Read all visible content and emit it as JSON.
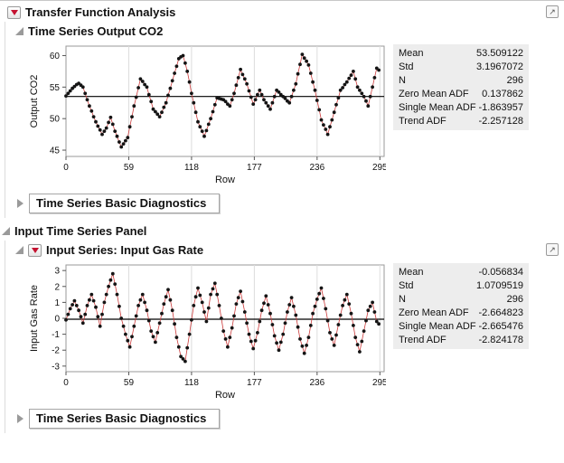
{
  "header": {
    "title": "Transfer Function Analysis"
  },
  "sections": {
    "output": {
      "title": "Time Series Output CO2",
      "diagnostics_label": "Time Series Basic Diagnostics"
    },
    "input_panel": {
      "title": "Input Time Series Panel"
    },
    "input_series": {
      "title": "Input Series: Input Gas Rate",
      "diagnostics_label": "Time Series Basic Diagnostics"
    }
  },
  "icons": {
    "popout_glyph": "↗"
  },
  "colors": {
    "red_triangle": "#c41230",
    "series_line": "#cc3b3b",
    "point": "#141414",
    "stats_bg": "#ededed",
    "grid": "#dcdcdc"
  },
  "stats_panels": [
    {
      "rows": [
        [
          "Mean",
          "53.509122"
        ],
        [
          "Std",
          "3.1967072"
        ],
        [
          "N",
          "296"
        ],
        [
          "Zero Mean ADF",
          "0.137862"
        ],
        [
          "Single Mean ADF",
          "-1.863957"
        ],
        [
          "Trend ADF",
          "-2.257128"
        ]
      ]
    },
    {
      "rows": [
        [
          "Mean",
          "-0.056834"
        ],
        [
          "Std",
          "1.0709519"
        ],
        [
          "N",
          "296"
        ],
        [
          "Zero Mean ADF",
          "-2.664823"
        ],
        [
          "Single Mean ADF",
          "-2.665476"
        ],
        [
          "Trend ADF",
          "-2.824178"
        ]
      ]
    }
  ],
  "chart_data": [
    {
      "type": "line",
      "title": "Time Series Output CO2",
      "xlabel": "Row",
      "ylabel": "Output CO2",
      "x_start": 0,
      "x_step": 2,
      "xlim": [
        0,
        299
      ],
      "ylim": [
        44,
        61.5
      ],
      "xticks": [
        0,
        59,
        118,
        177,
        236,
        295
      ],
      "yticks": [
        45,
        50,
        55,
        60
      ],
      "ref_line": 53.509122,
      "grid": "vertical-only",
      "marker": "filled-circle",
      "line_color": "#cc3b3b",
      "point_color": "#141414",
      "values": [
        53.6,
        54.0,
        54.4,
        54.8,
        55.1,
        55.4,
        55.6,
        55.3,
        55.0,
        54.0,
        53.0,
        52.0,
        51.2,
        50.3,
        49.5,
        48.8,
        48.2,
        47.5,
        48.0,
        48.5,
        49.4,
        50.2,
        49.1,
        48.0,
        47.2,
        46.3,
        45.5,
        46.0,
        46.5,
        47.0,
        48.7,
        50.3,
        52.0,
        53.4,
        54.9,
        56.3,
        55.9,
        55.4,
        55.0,
        53.8,
        52.7,
        51.5,
        51.1,
        50.7,
        50.3,
        51.0,
        51.8,
        52.5,
        53.7,
        54.8,
        56.0,
        57.2,
        58.3,
        59.5,
        59.8,
        60.0,
        58.8,
        57.5,
        55.8,
        54.0,
        52.5,
        51.0,
        49.5,
        48.7,
        48.0,
        47.2,
        48.1,
        49.1,
        50.0,
        51.1,
        52.2,
        53.3,
        53.2,
        53.1,
        53.0,
        52.7,
        52.3,
        52.0,
        53.0,
        54.0,
        55.3,
        56.5,
        57.8,
        57.0,
        56.3,
        55.5,
        54.4,
        53.4,
        52.3,
        53.0,
        53.8,
        54.5,
        53.8,
        53.0,
        52.5,
        52.0,
        51.5,
        52.5,
        53.5,
        54.5,
        54.2,
        53.8,
        53.5,
        53.2,
        52.8,
        52.5,
        53.5,
        54.5,
        55.5,
        57.1,
        58.6,
        60.2,
        59.6,
        59.1,
        58.5,
        57.2,
        55.8,
        54.5,
        52.9,
        51.4,
        49.8,
        49.0,
        48.3,
        47.5,
        48.7,
        49.8,
        51.0,
        52.2,
        53.3,
        54.5,
        54.9,
        55.4,
        55.8,
        56.4,
        56.9,
        57.5,
        56.3,
        55.0,
        54.5,
        54.0,
        53.5,
        52.8,
        52.0,
        53.5,
        55.0,
        56.5,
        58.0,
        57.7
      ]
    },
    {
      "type": "line",
      "title": "Input Series: Input Gas Rate",
      "xlabel": "Row",
      "ylabel": "Input Gas Rate",
      "x_start": 0,
      "x_step": 2,
      "xlim": [
        0,
        299
      ],
      "ylim": [
        -3.35,
        3.35
      ],
      "xticks": [
        0,
        59,
        118,
        177,
        236,
        295
      ],
      "yticks": [
        -3,
        -2,
        -1,
        0,
        1,
        2,
        3
      ],
      "ref_line": -0.056834,
      "grid": "vertical-only",
      "marker": "filled-circle",
      "line_color": "#cc3b3b",
      "point_color": "#141414",
      "values": [
        -0.1,
        0.25,
        0.6,
        0.85,
        1.1,
        0.8,
        0.5,
        0.1,
        -0.3,
        0.25,
        0.8,
        1.15,
        1.5,
        1.1,
        0.7,
        0.1,
        -0.5,
        0.25,
        1.0,
        1.5,
        2.0,
        2.4,
        2.8,
        2.15,
        1.5,
        0.75,
        0.0,
        -0.5,
        -1.0,
        -1.4,
        -1.8,
        -1.15,
        -0.5,
        0.15,
        0.8,
        1.15,
        1.5,
        1.0,
        0.5,
        -0.15,
        -0.8,
        -1.15,
        -1.5,
        -0.9,
        -0.3,
        0.3,
        0.9,
        1.35,
        1.8,
        1.15,
        0.5,
        -0.35,
        -1.2,
        -1.8,
        -2.4,
        -2.55,
        -2.7,
        -1.85,
        -1.0,
        -0.1,
        0.8,
        1.35,
        1.9,
        1.45,
        1.0,
        0.4,
        -0.2,
        0.65,
        1.5,
        1.85,
        2.2,
        1.5,
        0.8,
        0.0,
        -0.8,
        -1.3,
        -1.8,
        -1.2,
        -0.6,
        0.15,
        0.9,
        1.3,
        1.7,
        1.05,
        0.4,
        -0.3,
        -1.0,
        -1.45,
        -1.9,
        -1.4,
        -0.9,
        -0.2,
        0.5,
        0.95,
        1.4,
        0.85,
        0.3,
        -0.4,
        -1.1,
        -1.55,
        -2.0,
        -1.5,
        -1.0,
        -0.3,
        0.4,
        0.85,
        1.3,
        0.75,
        0.2,
        -0.55,
        -1.3,
        -1.75,
        -2.2,
        -1.7,
        -1.2,
        -0.45,
        0.3,
        0.75,
        1.2,
        1.55,
        1.9,
        1.25,
        0.6,
        -0.15,
        -0.9,
        -1.3,
        -1.7,
        -1.05,
        -0.4,
        0.2,
        0.8,
        1.15,
        1.5,
        0.9,
        0.3,
        -0.45,
        -1.2,
        -1.65,
        -2.1,
        -1.45,
        -0.8,
        -0.15,
        0.5,
        0.75,
        1.0,
        0.4,
        -0.2,
        -0.35
      ]
    }
  ]
}
